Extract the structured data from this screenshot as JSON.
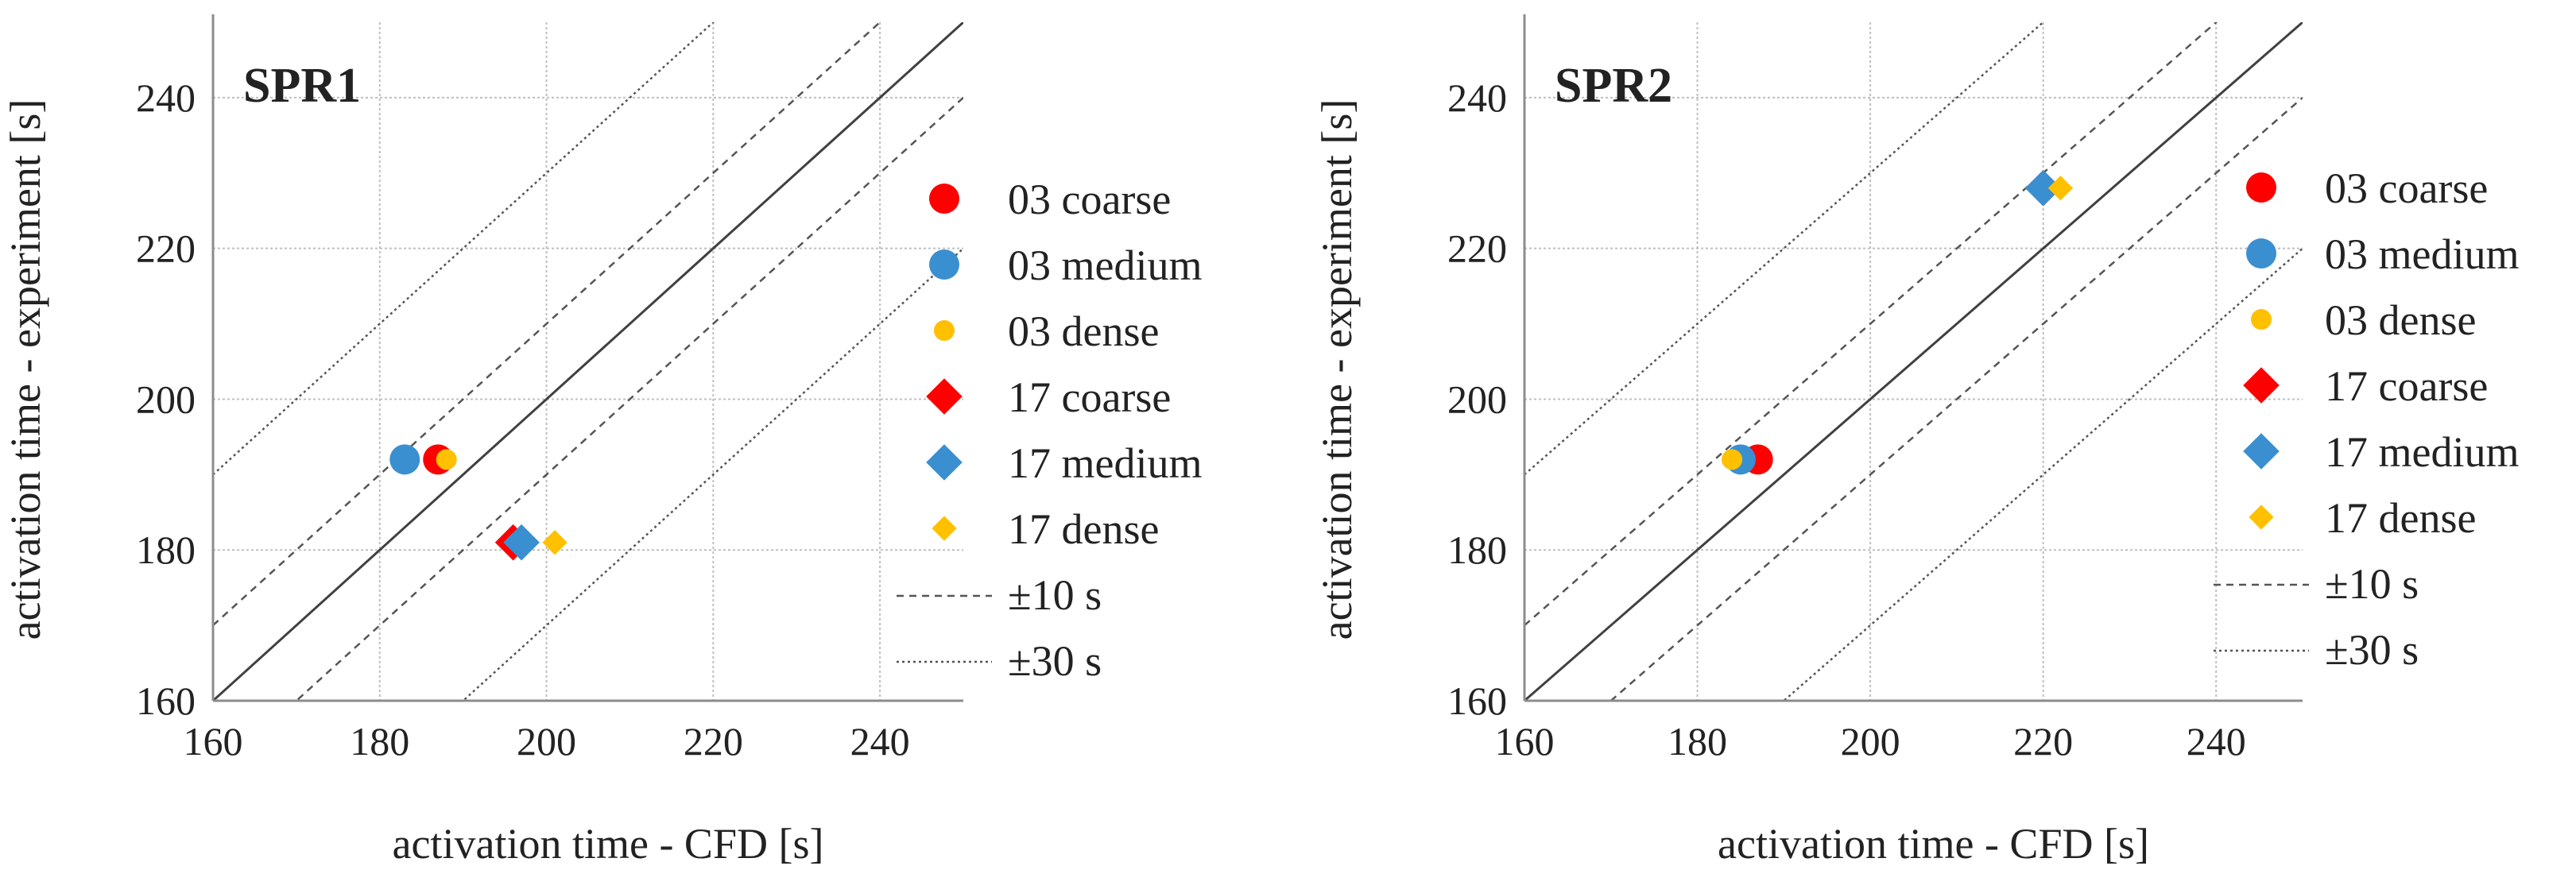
{
  "chart_data": [
    {
      "type": "scatter",
      "title": "SPR1",
      "xlabel": "activation time - CFD [s]",
      "ylabel": "activation time - experiment [s]",
      "xlim": [
        160,
        250
      ],
      "ylim": [
        160,
        250
      ],
      "xticks": [
        "160",
        "180",
        "200",
        "220",
        "240"
      ],
      "yticks": [
        "160",
        "180",
        "200",
        "220",
        "240"
      ],
      "grid": true,
      "series": [
        {
          "name": "03 coarse",
          "marker": "circle",
          "color": "#ff0000",
          "points": [
            [
              187,
              192
            ]
          ]
        },
        {
          "name": "03 medium",
          "marker": "circle",
          "color": "#3a8fd0",
          "points": [
            [
              183,
              192
            ]
          ]
        },
        {
          "name": "03 dense",
          "marker": "circle",
          "color": "#ffc000",
          "points": [
            [
              188,
              192
            ]
          ]
        },
        {
          "name": "17 coarse",
          "marker": "diamond",
          "color": "#ff0000",
          "points": [
            [
              196,
              181
            ]
          ]
        },
        {
          "name": "17 medium",
          "marker": "diamond",
          "color": "#3a8fd0",
          "points": [
            [
              197,
              181
            ]
          ]
        },
        {
          "name": "17 dense",
          "marker": "diamond",
          "color": "#ffc000",
          "points": [
            [
              201,
              181
            ]
          ]
        }
      ],
      "reference_lines": [
        {
          "name": "±10 s",
          "offsets": [
            10,
            -10
          ]
        },
        {
          "name": "±30 s",
          "offsets": [
            30,
            -30
          ]
        }
      ],
      "legend_position": "right"
    },
    {
      "type": "scatter",
      "title": "SPR2",
      "xlabel": "activation time - CFD [s]",
      "ylabel": "activation time - experiment [s]",
      "xlim": [
        160,
        250
      ],
      "ylim": [
        160,
        250
      ],
      "xticks": [
        "160",
        "180",
        "200",
        "220",
        "240"
      ],
      "yticks": [
        "160",
        "180",
        "200",
        "220",
        "240"
      ],
      "grid": true,
      "series": [
        {
          "name": "03 coarse",
          "marker": "circle",
          "color": "#ff0000",
          "points": [
            [
              187,
              192
            ]
          ]
        },
        {
          "name": "03 medium",
          "marker": "circle",
          "color": "#3a8fd0",
          "points": [
            [
              185,
              192
            ]
          ]
        },
        {
          "name": "03 dense",
          "marker": "circle",
          "color": "#ffc000",
          "points": [
            [
              184,
              192
            ]
          ]
        },
        {
          "name": "17 coarse",
          "marker": "diamond",
          "color": "#ff0000",
          "points": [
            [
              220,
              228
            ]
          ]
        },
        {
          "name": "17 medium",
          "marker": "diamond",
          "color": "#3a8fd0",
          "points": [
            [
              220,
              228
            ]
          ]
        },
        {
          "name": "17 dense",
          "marker": "diamond",
          "color": "#ffc000",
          "points": [
            [
              222,
              228
            ]
          ]
        }
      ],
      "reference_lines": [
        {
          "name": "±10 s",
          "offsets": [
            10,
            -10
          ]
        },
        {
          "name": "±30 s",
          "offsets": [
            30,
            -30
          ]
        }
      ],
      "legend_position": "right"
    }
  ]
}
